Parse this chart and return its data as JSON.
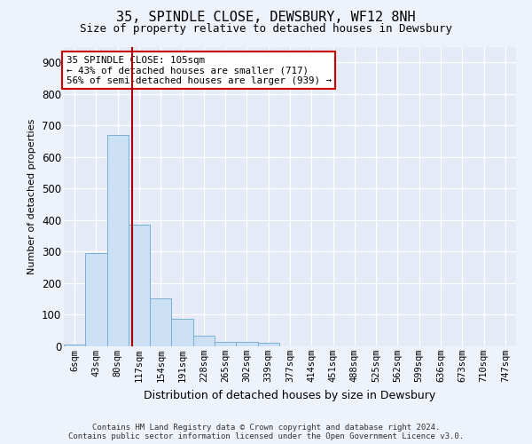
{
  "title": "35, SPINDLE CLOSE, DEWSBURY, WF12 8NH",
  "subtitle": "Size of property relative to detached houses in Dewsbury",
  "xlabel": "Distribution of detached houses by size in Dewsbury",
  "ylabel": "Number of detached properties",
  "bar_labels": [
    "6sqm",
    "43sqm",
    "80sqm",
    "117sqm",
    "154sqm",
    "191sqm",
    "228sqm",
    "265sqm",
    "302sqm",
    "339sqm",
    "377sqm",
    "414sqm",
    "451sqm",
    "488sqm",
    "525sqm",
    "562sqm",
    "599sqm",
    "636sqm",
    "673sqm",
    "710sqm",
    "747sqm"
  ],
  "bar_values": [
    7,
    295,
    670,
    385,
    152,
    88,
    35,
    14,
    13,
    10,
    0,
    0,
    0,
    0,
    0,
    0,
    0,
    0,
    0,
    0,
    0
  ],
  "bar_color": "#cce0f5",
  "bar_edge_color": "#7aafd4",
  "vline_x": 2.67,
  "vline_color": "#aa0000",
  "annotation_title": "35 SPINDLE CLOSE: 105sqm",
  "annotation_line2": "← 43% of detached houses are smaller (717)",
  "annotation_line3": "56% of semi-detached houses are larger (939) →",
  "annotation_box_color": "#ffffff",
  "annotation_box_edge": "#cc0000",
  "ylim": [
    0,
    950
  ],
  "yticks": [
    0,
    100,
    200,
    300,
    400,
    500,
    600,
    700,
    800,
    900
  ],
  "footer1": "Contains HM Land Registry data © Crown copyright and database right 2024.",
  "footer2": "Contains public sector information licensed under the Open Government Licence v3.0.",
  "bg_color": "#eef2fa",
  "plot_bg_color": "#e4eaf6"
}
